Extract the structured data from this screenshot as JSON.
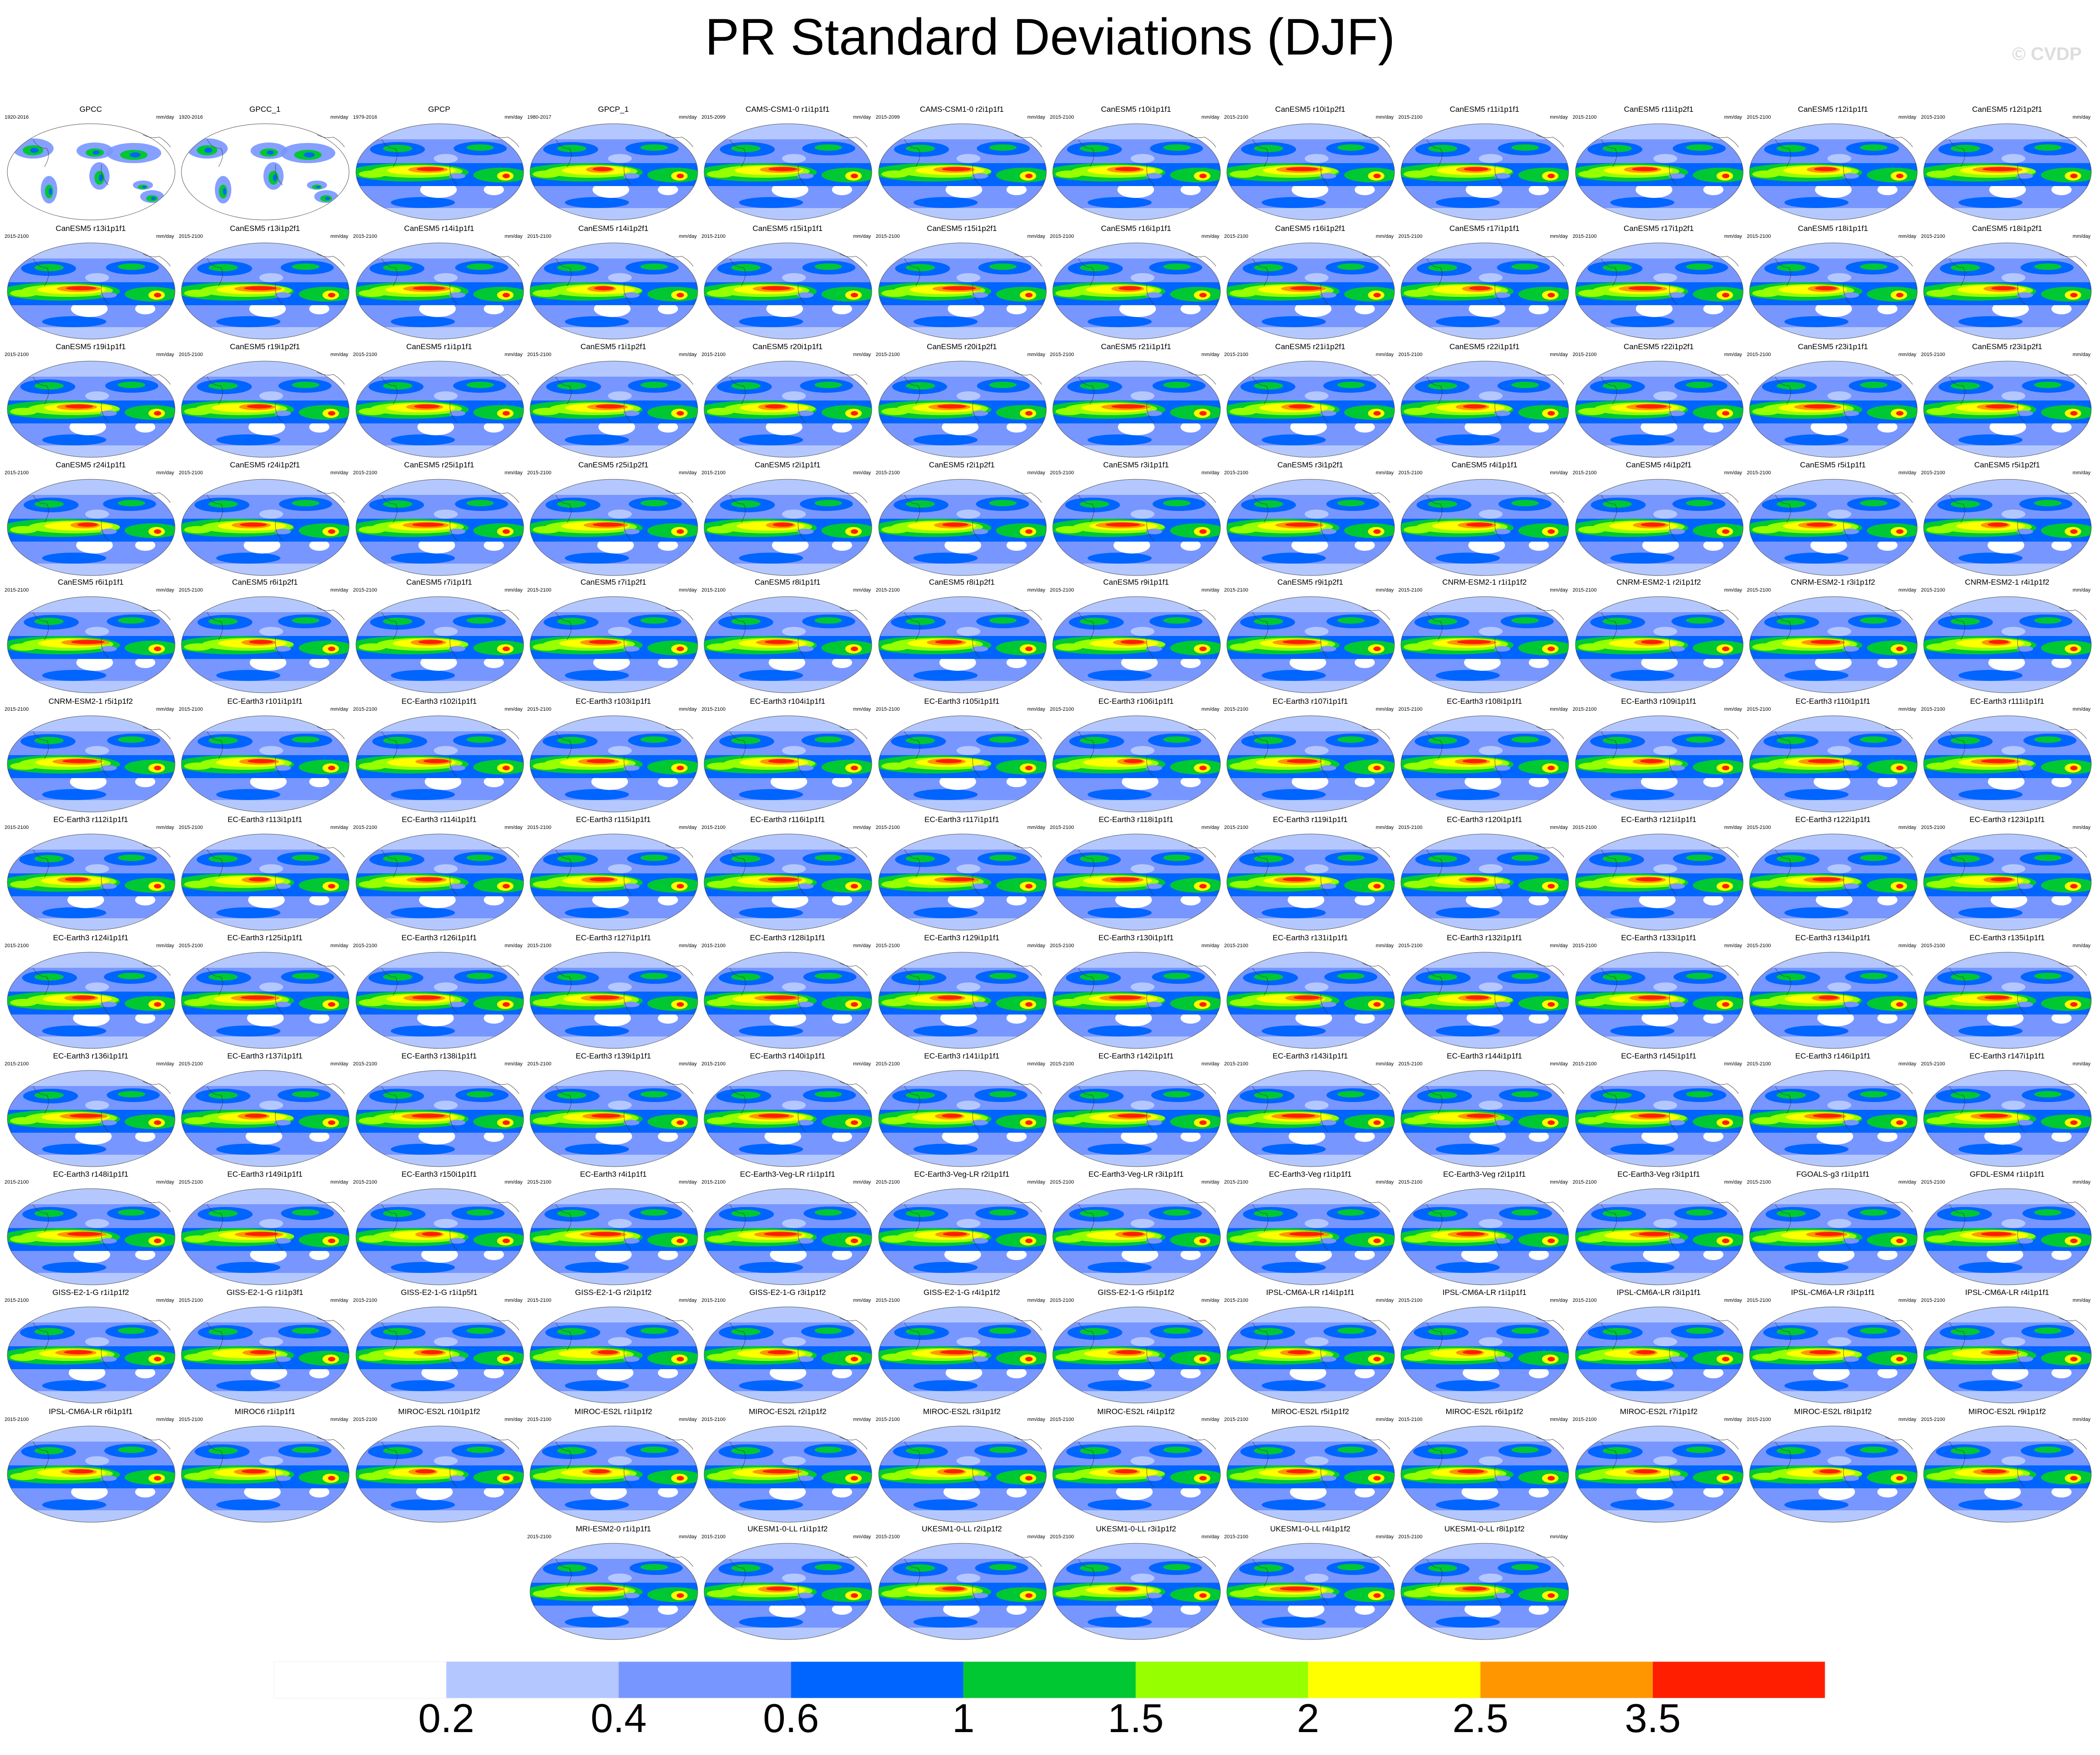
{
  "title": "PR Standard Deviations (DJF)",
  "watermark": "© CVDP",
  "units": "mm/day",
  "colorbar": {
    "colors": [
      "#ffffff",
      "#b4c8ff",
      "#7896ff",
      "#0064ff",
      "#00c832",
      "#96ff00",
      "#ffff00",
      "#ff9600",
      "#ff1e00"
    ],
    "labels": [
      "0.2",
      "0.4",
      "0.6",
      "1",
      "1.5",
      "2",
      "2.5",
      "3.5"
    ]
  },
  "panels": [
    {
      "title": "GPCC",
      "period": "1920-2016",
      "units": "mm/day"
    },
    {
      "title": "GPCC_1",
      "period": "1920-2016",
      "units": "mm/day"
    },
    {
      "title": "GPCP",
      "period": "1979-2016",
      "units": "mm/day"
    },
    {
      "title": "GPCP_1",
      "period": "1980-2017",
      "units": "mm/day"
    },
    {
      "title": "CAMS-CSM1-0 r1i1p1f1",
      "period": "2015-2099",
      "units": "mm/day"
    },
    {
      "title": "CAMS-CSM1-0 r2i1p1f1",
      "period": "2015-2099",
      "units": "mm/day"
    },
    {
      "title": "CanESM5 r10i1p1f1",
      "period": "2015-2100",
      "units": "mm/day"
    },
    {
      "title": "CanESM5 r10i1p2f1",
      "period": "2015-2100",
      "units": "mm/day"
    },
    {
      "title": "CanESM5 r11i1p1f1",
      "period": "2015-2100",
      "units": "mm/day"
    },
    {
      "title": "CanESM5 r11i1p2f1",
      "period": "2015-2100",
      "units": "mm/day"
    },
    {
      "title": "CanESM5 r12i1p1f1",
      "period": "2015-2100",
      "units": "mm/day"
    },
    {
      "title": "CanESM5 r12i1p2f1",
      "period": "2015-2100",
      "units": "mm/day"
    },
    {
      "title": "CanESM5 r13i1p1f1",
      "period": "2015-2100",
      "units": "mm/day"
    },
    {
      "title": "CanESM5 r13i1p2f1",
      "period": "2015-2100",
      "units": "mm/day"
    },
    {
      "title": "CanESM5 r14i1p1f1",
      "period": "2015-2100",
      "units": "mm/day"
    },
    {
      "title": "CanESM5 r14i1p2f1",
      "period": "2015-2100",
      "units": "mm/day"
    },
    {
      "title": "CanESM5 r15i1p1f1",
      "period": "2015-2100",
      "units": "mm/day"
    },
    {
      "title": "CanESM5 r15i1p2f1",
      "period": "2015-2100",
      "units": "mm/day"
    },
    {
      "title": "CanESM5 r16i1p1f1",
      "period": "2015-2100",
      "units": "mm/day"
    },
    {
      "title": "CanESM5 r16i1p2f1",
      "period": "2015-2100",
      "units": "mm/day"
    },
    {
      "title": "CanESM5 r17i1p1f1",
      "period": "2015-2100",
      "units": "mm/day"
    },
    {
      "title": "CanESM5 r17i1p2f1",
      "period": "2015-2100",
      "units": "mm/day"
    },
    {
      "title": "CanESM5 r18i1p1f1",
      "period": "2015-2100",
      "units": "mm/day"
    },
    {
      "title": "CanESM5 r18i1p2f1",
      "period": "2015-2100",
      "units": "mm/day"
    },
    {
      "title": "CanESM5 r19i1p1f1",
      "period": "2015-2100",
      "units": "mm/day"
    },
    {
      "title": "CanESM5 r19i1p2f1",
      "period": "2015-2100",
      "units": "mm/day"
    },
    {
      "title": "CanESM5 r1i1p1f1",
      "period": "2015-2100",
      "units": "mm/day"
    },
    {
      "title": "CanESM5 r1i1p2f1",
      "period": "2015-2100",
      "units": "mm/day"
    },
    {
      "title": "CanESM5 r20i1p1f1",
      "period": "2015-2100",
      "units": "mm/day"
    },
    {
      "title": "CanESM5 r20i1p2f1",
      "period": "2015-2100",
      "units": "mm/day"
    },
    {
      "title": "CanESM5 r21i1p1f1",
      "period": "2015-2100",
      "units": "mm/day"
    },
    {
      "title": "CanESM5 r21i1p2f1",
      "period": "2015-2100",
      "units": "mm/day"
    },
    {
      "title": "CanESM5 r22i1p1f1",
      "period": "2015-2100",
      "units": "mm/day"
    },
    {
      "title": "CanESM5 r22i1p2f1",
      "period": "2015-2100",
      "units": "mm/day"
    },
    {
      "title": "CanESM5 r23i1p1f1",
      "period": "2015-2100",
      "units": "mm/day"
    },
    {
      "title": "CanESM5 r23i1p2f1",
      "period": "2015-2100",
      "units": "mm/day"
    },
    {
      "title": "CanESM5 r24i1p1f1",
      "period": "2015-2100",
      "units": "mm/day"
    },
    {
      "title": "CanESM5 r24i1p2f1",
      "period": "2015-2100",
      "units": "mm/day"
    },
    {
      "title": "CanESM5 r25i1p1f1",
      "period": "2015-2100",
      "units": "mm/day"
    },
    {
      "title": "CanESM5 r25i1p2f1",
      "period": "2015-2100",
      "units": "mm/day"
    },
    {
      "title": "CanESM5 r2i1p1f1",
      "period": "2015-2100",
      "units": "mm/day"
    },
    {
      "title": "CanESM5 r2i1p2f1",
      "period": "2015-2100",
      "units": "mm/day"
    },
    {
      "title": "CanESM5 r3i1p1f1",
      "period": "2015-2100",
      "units": "mm/day"
    },
    {
      "title": "CanESM5 r3i1p2f1",
      "period": "2015-2100",
      "units": "mm/day"
    },
    {
      "title": "CanESM5 r4i1p1f1",
      "period": "2015-2100",
      "units": "mm/day"
    },
    {
      "title": "CanESM5 r4i1p2f1",
      "period": "2015-2100",
      "units": "mm/day"
    },
    {
      "title": "CanESM5 r5i1p1f1",
      "period": "2015-2100",
      "units": "mm/day"
    },
    {
      "title": "CanESM5 r5i1p2f1",
      "period": "2015-2100",
      "units": "mm/day"
    },
    {
      "title": "CanESM5 r6i1p1f1",
      "period": "2015-2100",
      "units": "mm/day"
    },
    {
      "title": "CanESM5 r6i1p2f1",
      "period": "2015-2100",
      "units": "mm/day"
    },
    {
      "title": "CanESM5 r7i1p1f1",
      "period": "2015-2100",
      "units": "mm/day"
    },
    {
      "title": "CanESM5 r7i1p2f1",
      "period": "2015-2100",
      "units": "mm/day"
    },
    {
      "title": "CanESM5 r8i1p1f1",
      "period": "2015-2100",
      "units": "mm/day"
    },
    {
      "title": "CanESM5 r8i1p2f1",
      "period": "2015-2100",
      "units": "mm/day"
    },
    {
      "title": "CanESM5 r9i1p1f1",
      "period": "2015-2100",
      "units": "mm/day"
    },
    {
      "title": "CanESM5 r9i1p2f1",
      "period": "2015-2100",
      "units": "mm/day"
    },
    {
      "title": "CNRM-ESM2-1 r1i1p1f2",
      "period": "2015-2100",
      "units": "mm/day"
    },
    {
      "title": "CNRM-ESM2-1 r2i1p1f2",
      "period": "2015-2100",
      "units": "mm/day"
    },
    {
      "title": "CNRM-ESM2-1 r3i1p1f2",
      "period": "2015-2100",
      "units": "mm/day"
    },
    {
      "title": "CNRM-ESM2-1 r4i1p1f2",
      "period": "2015-2100",
      "units": "mm/day"
    },
    {
      "title": "CNRM-ESM2-1 r5i1p1f2",
      "period": "2015-2100",
      "units": "mm/day"
    },
    {
      "title": "EC-Earth3 r101i1p1f1",
      "period": "2015-2100",
      "units": "mm/day"
    },
    {
      "title": "EC-Earth3 r102i1p1f1",
      "period": "2015-2100",
      "units": "mm/day"
    },
    {
      "title": "EC-Earth3 r103i1p1f1",
      "period": "2015-2100",
      "units": "mm/day"
    },
    {
      "title": "EC-Earth3 r104i1p1f1",
      "period": "2015-2100",
      "units": "mm/day"
    },
    {
      "title": "EC-Earth3 r105i1p1f1",
      "period": "2015-2100",
      "units": "mm/day"
    },
    {
      "title": "EC-Earth3 r106i1p1f1",
      "period": "2015-2100",
      "units": "mm/day"
    },
    {
      "title": "EC-Earth3 r107i1p1f1",
      "period": "2015-2100",
      "units": "mm/day"
    },
    {
      "title": "EC-Earth3 r108i1p1f1",
      "period": "2015-2100",
      "units": "mm/day"
    },
    {
      "title": "EC-Earth3 r109i1p1f1",
      "period": "2015-2100",
      "units": "mm/day"
    },
    {
      "title": "EC-Earth3 r110i1p1f1",
      "period": "2015-2100",
      "units": "mm/day"
    },
    {
      "title": "EC-Earth3 r111i1p1f1",
      "period": "2015-2100",
      "units": "mm/day"
    },
    {
      "title": "EC-Earth3 r112i1p1f1",
      "period": "2015-2100",
      "units": "mm/day"
    },
    {
      "title": "EC-Earth3 r113i1p1f1",
      "period": "2015-2100",
      "units": "mm/day"
    },
    {
      "title": "EC-Earth3 r114i1p1f1",
      "period": "2015-2100",
      "units": "mm/day"
    },
    {
      "title": "EC-Earth3 r115i1p1f1",
      "period": "2015-2100",
      "units": "mm/day"
    },
    {
      "title": "EC-Earth3 r116i1p1f1",
      "period": "2015-2100",
      "units": "mm/day"
    },
    {
      "title": "EC-Earth3 r117i1p1f1",
      "period": "2015-2100",
      "units": "mm/day"
    },
    {
      "title": "EC-Earth3 r118i1p1f1",
      "period": "2015-2100",
      "units": "mm/day"
    },
    {
      "title": "EC-Earth3 r119i1p1f1",
      "period": "2015-2100",
      "units": "mm/day"
    },
    {
      "title": "EC-Earth3 r120i1p1f1",
      "period": "2015-2100",
      "units": "mm/day"
    },
    {
      "title": "EC-Earth3 r121i1p1f1",
      "period": "2015-2100",
      "units": "mm/day"
    },
    {
      "title": "EC-Earth3 r122i1p1f1",
      "period": "2015-2100",
      "units": "mm/day"
    },
    {
      "title": "EC-Earth3 r123i1p1f1",
      "period": "2015-2100",
      "units": "mm/day"
    },
    {
      "title": "EC-Earth3 r124i1p1f1",
      "period": "2015-2100",
      "units": "mm/day"
    },
    {
      "title": "EC-Earth3 r125i1p1f1",
      "period": "2015-2100",
      "units": "mm/day"
    },
    {
      "title": "EC-Earth3 r126i1p1f1",
      "period": "2015-2100",
      "units": "mm/day"
    },
    {
      "title": "EC-Earth3 r127i1p1f1",
      "period": "2015-2100",
      "units": "mm/day"
    },
    {
      "title": "EC-Earth3 r128i1p1f1",
      "period": "2015-2100",
      "units": "mm/day"
    },
    {
      "title": "EC-Earth3 r129i1p1f1",
      "period": "2015-2100",
      "units": "mm/day"
    },
    {
      "title": "EC-Earth3 r130i1p1f1",
      "period": "2015-2100",
      "units": "mm/day"
    },
    {
      "title": "EC-Earth3 r131i1p1f1",
      "period": "2015-2100",
      "units": "mm/day"
    },
    {
      "title": "EC-Earth3 r132i1p1f1",
      "period": "2015-2100",
      "units": "mm/day"
    },
    {
      "title": "EC-Earth3 r133i1p1f1",
      "period": "2015-2100",
      "units": "mm/day"
    },
    {
      "title": "EC-Earth3 r134i1p1f1",
      "period": "2015-2100",
      "units": "mm/day"
    },
    {
      "title": "EC-Earth3 r135i1p1f1",
      "period": "2015-2100",
      "units": "mm/day"
    },
    {
      "title": "EC-Earth3 r136i1p1f1",
      "period": "2015-2100",
      "units": "mm/day"
    },
    {
      "title": "EC-Earth3 r137i1p1f1",
      "period": "2015-2100",
      "units": "mm/day"
    },
    {
      "title": "EC-Earth3 r138i1p1f1",
      "period": "2015-2100",
      "units": "mm/day"
    },
    {
      "title": "EC-Earth3 r139i1p1f1",
      "period": "2015-2100",
      "units": "mm/day"
    },
    {
      "title": "EC-Earth3 r140i1p1f1",
      "period": "2015-2100",
      "units": "mm/day"
    },
    {
      "title": "EC-Earth3 r141i1p1f1",
      "period": "2015-2100",
      "units": "mm/day"
    },
    {
      "title": "EC-Earth3 r142i1p1f1",
      "period": "2015-2100",
      "units": "mm/day"
    },
    {
      "title": "EC-Earth3 r143i1p1f1",
      "period": "2015-2100",
      "units": "mm/day"
    },
    {
      "title": "EC-Earth3 r144i1p1f1",
      "period": "2015-2100",
      "units": "mm/day"
    },
    {
      "title": "EC-Earth3 r145i1p1f1",
      "period": "2015-2100",
      "units": "mm/day"
    },
    {
      "title": "EC-Earth3 r146i1p1f1",
      "period": "2015-2100",
      "units": "mm/day"
    },
    {
      "title": "EC-Earth3 r147i1p1f1",
      "period": "2015-2100",
      "units": "mm/day"
    },
    {
      "title": "EC-Earth3 r148i1p1f1",
      "period": "2015-2100",
      "units": "mm/day"
    },
    {
      "title": "EC-Earth3 r149i1p1f1",
      "period": "2015-2100",
      "units": "mm/day"
    },
    {
      "title": "EC-Earth3 r150i1p1f1",
      "period": "2015-2100",
      "units": "mm/day"
    },
    {
      "title": "EC-Earth3 r4i1p1f1",
      "period": "2015-2100",
      "units": "mm/day"
    },
    {
      "title": "EC-Earth3-Veg-LR r1i1p1f1",
      "period": "2015-2100",
      "units": "mm/day"
    },
    {
      "title": "EC-Earth3-Veg-LR r2i1p1f1",
      "period": "2015-2100",
      "units": "mm/day"
    },
    {
      "title": "EC-Earth3-Veg-LR r3i1p1f1",
      "period": "2015-2100",
      "units": "mm/day"
    },
    {
      "title": "EC-Earth3-Veg r1i1p1f1",
      "period": "2015-2100",
      "units": "mm/day"
    },
    {
      "title": "EC-Earth3-Veg r2i1p1f1",
      "period": "2015-2100",
      "units": "mm/day"
    },
    {
      "title": "EC-Earth3-Veg r3i1p1f1",
      "period": "2015-2100",
      "units": "mm/day"
    },
    {
      "title": "FGOALS-g3 r1i1p1f1",
      "period": "2015-2100",
      "units": "mm/day"
    },
    {
      "title": "GFDL-ESM4 r1i1p1f1",
      "period": "2015-2100",
      "units": "mm/day"
    },
    {
      "title": "GISS-E2-1-G r1i1p1f2",
      "period": "2015-2100",
      "units": "mm/day"
    },
    {
      "title": "GISS-E2-1-G r1i1p3f1",
      "period": "2015-2100",
      "units": "mm/day"
    },
    {
      "title": "GISS-E2-1-G r1i1p5f1",
      "period": "2015-2100",
      "units": "mm/day"
    },
    {
      "title": "GISS-E2-1-G r2i1p1f2",
      "period": "2015-2100",
      "units": "mm/day"
    },
    {
      "title": "GISS-E2-1-G r3i1p1f2",
      "period": "2015-2100",
      "units": "mm/day"
    },
    {
      "title": "GISS-E2-1-G r4i1p1f2",
      "period": "2015-2100",
      "units": "mm/day"
    },
    {
      "title": "GISS-E2-1-G r5i1p1f2",
      "period": "2015-2100",
      "units": "mm/day"
    },
    {
      "title": "IPSL-CM6A-LR r14i1p1f1",
      "period": "2015-2100",
      "units": "mm/day"
    },
    {
      "title": "IPSL-CM6A-LR r1i1p1f1",
      "period": "2015-2100",
      "units": "mm/day"
    },
    {
      "title": "IPSL-CM6A-LR r3i1p1f1",
      "period": "2015-2100",
      "units": "mm/day"
    },
    {
      "title": "IPSL-CM6A-LR r3i1p1f1",
      "period": "2015-2100",
      "units": "mm/day"
    },
    {
      "title": "IPSL-CM6A-LR r4i1p1f1",
      "period": "2015-2100",
      "units": "mm/day"
    },
    {
      "title": "IPSL-CM6A-LR r6i1p1f1",
      "period": "2015-2100",
      "units": "mm/day"
    },
    {
      "title": "MIROC6 r1i1p1f1",
      "period": "2015-2100",
      "units": "mm/day"
    },
    {
      "title": "MIROC-ES2L r10i1p1f2",
      "period": "2015-2100",
      "units": "mm/day"
    },
    {
      "title": "MIROC-ES2L r1i1p1f2",
      "period": "2015-2100",
      "units": "mm/day"
    },
    {
      "title": "MIROC-ES2L r2i1p1f2",
      "period": "2015-2100",
      "units": "mm/day"
    },
    {
      "title": "MIROC-ES2L r3i1p1f2",
      "period": "2015-2100",
      "units": "mm/day"
    },
    {
      "title": "MIROC-ES2L r4i1p1f2",
      "period": "2015-2100",
      "units": "mm/day"
    },
    {
      "title": "MIROC-ES2L r5i1p1f2",
      "period": "2015-2100",
      "units": "mm/day"
    },
    {
      "title": "MIROC-ES2L r6i1p1f2",
      "period": "2015-2100",
      "units": "mm/day"
    },
    {
      "title": "MIROC-ES2L r7i1p1f2",
      "period": "2015-2100",
      "units": "mm/day"
    },
    {
      "title": "MIROC-ES2L r8i1p1f2",
      "period": "2015-2100",
      "units": "mm/day"
    },
    {
      "title": "MIROC-ES2L r9i1p1f2",
      "period": "2015-2100",
      "units": "mm/day"
    },
    {
      "title": "MRI-ESM2-0 r1i1p1f1",
      "period": "2015-2100",
      "units": "mm/day"
    },
    {
      "title": "UKESM1-0-LL r1i1p1f2",
      "period": "2015-2100",
      "units": "mm/day"
    },
    {
      "title": "UKESM1-0-LL r2i1p1f2",
      "period": "2015-2100",
      "units": "mm/day"
    },
    {
      "title": "UKESM1-0-LL r3i1p1f2",
      "period": "2015-2100",
      "units": "mm/day"
    },
    {
      "title": "UKESM1-0-LL r4i1p1f2",
      "period": "2015-2100",
      "units": "mm/day"
    },
    {
      "title": "UKESM1-0-LL r8i1p1f2",
      "period": "2015-2100",
      "units": "mm/day"
    }
  ],
  "chart_data": {
    "type": "heatmap",
    "title": "PR Standard Deviations (DJF)",
    "colorbar_levels": [
      0.2,
      0.4,
      0.6,
      1,
      1.5,
      2,
      2.5,
      3.5
    ],
    "panel_count": 150,
    "grid": false
  }
}
